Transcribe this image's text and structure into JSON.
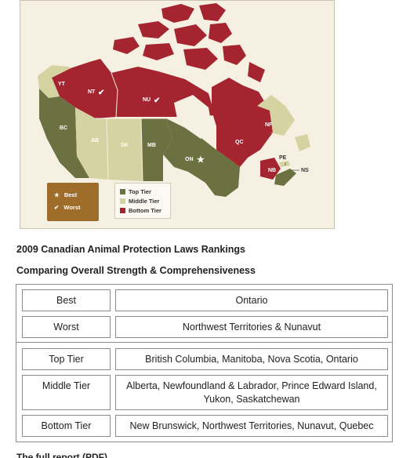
{
  "map": {
    "provinces": {
      "yt": "YT",
      "nt": "NT",
      "nu": "NU",
      "bc": "BC",
      "ab": "AB",
      "sk": "SK",
      "mb": "MB",
      "on": "ON",
      "qc": "QC",
      "nf": "NF",
      "nb": "NB",
      "pe": "PE",
      "ns": "NS"
    },
    "colors": {
      "top_tier": "#6b7140",
      "middle_tier": "#d6d3a2",
      "bottom_tier": "#a4252f",
      "key_box": "#9e6d2a",
      "background": "#f5f0e1"
    },
    "key": {
      "best_symbol": "★",
      "best_label": "Best",
      "worst_symbol": "✔",
      "worst_label": "Worst"
    },
    "legend": {
      "top": "Top Tier",
      "middle": "Middle Tier",
      "bottom": "Bottom Tier"
    }
  },
  "heading": "2009 Canadian Animal Protection Laws Rankings",
  "subheading": "Comparing Overall Strength & Comprehensiveness",
  "table": {
    "rows": [
      {
        "label": "Best",
        "value": "Ontario"
      },
      {
        "label": "Worst",
        "value": "Northwest Territories & Nunavut"
      },
      {
        "label": "Top Tier",
        "value": "British Columbia, Manitoba, Nova Scotia, Ontario"
      },
      {
        "label": "Middle Tier",
        "value": "Alberta, Newfoundland & Labrador, Prince Edward Island, Yukon, Saskatchewan"
      },
      {
        "label": "Bottom Tier",
        "value": "New Brunswick, Northwest Territories, Nunavut, Quebec"
      }
    ]
  },
  "footer_cut": "The full report (PDF)"
}
